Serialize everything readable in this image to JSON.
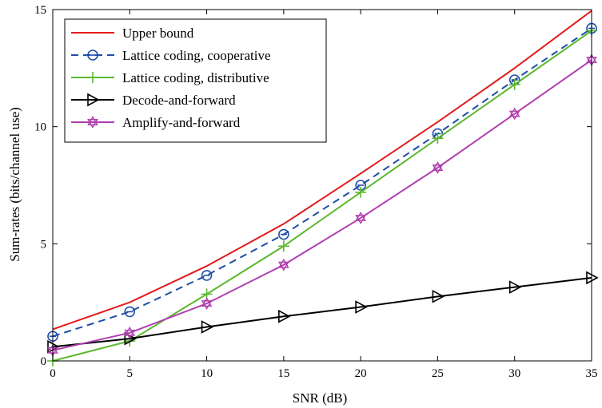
{
  "chart_data": {
    "type": "line",
    "title": "",
    "xlabel": "SNR (dB)",
    "ylabel": "Sum-rates (bits/channel use)",
    "xlim": [
      0,
      35
    ],
    "ylim": [
      0,
      15
    ],
    "xticks": [
      0,
      5,
      10,
      15,
      20,
      25,
      30,
      35
    ],
    "yticks": [
      0,
      5,
      10,
      15
    ],
    "grid": false,
    "legend_position": "top-left",
    "x": [
      0,
      5,
      10,
      15,
      20,
      25,
      30,
      35
    ],
    "series": [
      {
        "name": "Upper bound",
        "color": "#e31a1c",
        "dash": "solid",
        "marker": "none",
        "values": [
          1.35,
          2.5,
          4.05,
          5.85,
          8.0,
          10.2,
          12.5,
          14.95
        ]
      },
      {
        "name": "Lattice coding, cooperative",
        "color": "#1f4ea8",
        "dash": "dashed",
        "marker": "circle-minus",
        "values": [
          1.05,
          2.1,
          3.65,
          5.4,
          7.5,
          9.7,
          12.0,
          14.2
        ]
      },
      {
        "name": "Lattice coding, distributive",
        "color": "#5cb82e",
        "dash": "solid",
        "marker": "plus",
        "values": [
          0.0,
          0.85,
          2.85,
          4.9,
          7.2,
          9.5,
          11.8,
          14.1
        ]
      },
      {
        "name": "Decode-and-forward",
        "color": "#000000",
        "dash": "solid",
        "marker": "triangle-right",
        "values": [
          0.6,
          0.95,
          1.45,
          1.9,
          2.3,
          2.75,
          3.15,
          3.55
        ]
      },
      {
        "name": "Amplify-and-forward",
        "color": "#b03fb0",
        "dash": "solid",
        "marker": "hexagram",
        "values": [
          0.45,
          1.2,
          2.45,
          4.1,
          6.1,
          8.25,
          10.55,
          12.85
        ]
      }
    ]
  }
}
